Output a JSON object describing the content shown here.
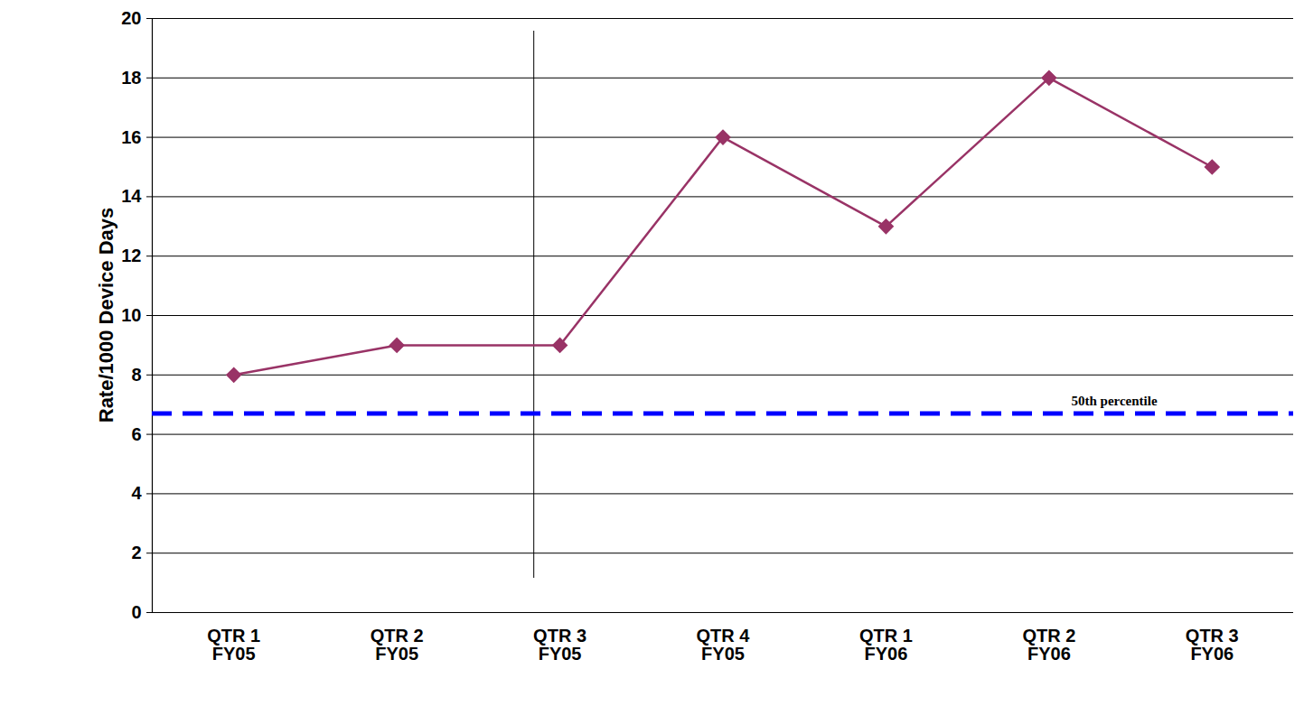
{
  "chart_data": {
    "type": "line",
    "categories": [
      "QTR 1 FY05",
      "QTR 2 FY05",
      "QTR 3 FY05",
      "QTR 4 FY05",
      "QTR 1 FY06",
      "QTR 2 FY06",
      "QTR 3 FY06"
    ],
    "values": [
      8,
      9,
      9,
      16,
      13,
      18,
      15
    ],
    "color": "#993366",
    "marker": "diamond",
    "y_label": "Rate/1000 Device Days",
    "ylim": [
      0,
      20
    ],
    "yticks": [
      0,
      2,
      4,
      6,
      8,
      10,
      12,
      14,
      16,
      18,
      20
    ],
    "grid": true,
    "annotations": [
      {
        "label": "50th percentile",
        "y": 6.7,
        "color": "#0000ff",
        "line_style": "dashed"
      }
    ]
  }
}
